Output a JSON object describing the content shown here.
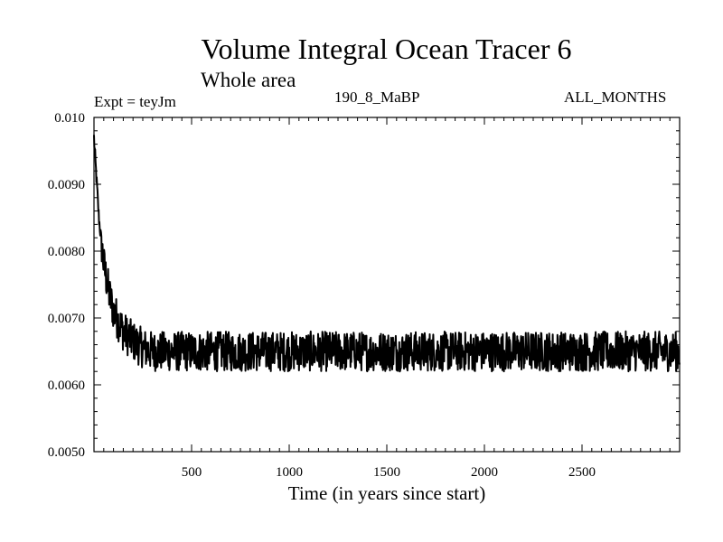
{
  "chart_data": {
    "type": "line",
    "title": "Volume Integral Ocean Tracer 6",
    "subtitle": "Whole area",
    "annotations": {
      "experiment": "Expt = teyJm",
      "period": "190_8_MaBP",
      "months": "ALL_MONTHS"
    },
    "xlabel": "Time (in years since start)",
    "ylabel": "",
    "xlim": [
      0,
      3000
    ],
    "ylim": [
      0.005,
      0.01
    ],
    "x_ticks": [
      500,
      1000,
      1500,
      2000,
      2500
    ],
    "x_tick_labels": [
      "500",
      "1000",
      "1500",
      "2000",
      "2500"
    ],
    "y_ticks": [
      0.005,
      0.006,
      0.007,
      0.008,
      0.009,
      0.01
    ],
    "y_tick_labels": [
      "0.0050",
      "0.0060",
      "0.0070",
      "0.0080",
      "0.0090",
      "0.010"
    ],
    "series": [
      {
        "name": "Volume Integral Ocean Tracer 6",
        "x": [
          0,
          10,
          25,
          50,
          75,
          100,
          150,
          200,
          250,
          300,
          400,
          500,
          700,
          1000,
          1500,
          2000,
          2500,
          3000
        ],
        "y": [
          0.0097,
          0.0092,
          0.0085,
          0.0078,
          0.0074,
          0.0071,
          0.0068,
          0.00665,
          0.00655,
          0.0065,
          0.0065,
          0.0065,
          0.0065,
          0.0065,
          0.0065,
          0.0065,
          0.0065,
          0.0065
        ],
        "noise_amplitude": 0.0003
      }
    ]
  }
}
